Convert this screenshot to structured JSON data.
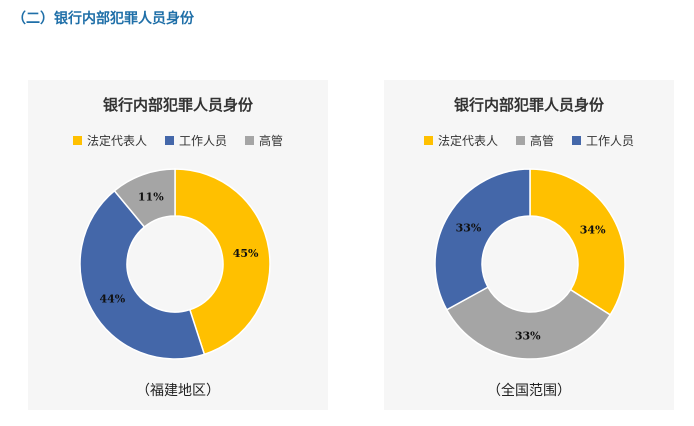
{
  "heading": "（二）银行内部犯罪人员身份",
  "colors": {
    "legal_rep": "#ffc000",
    "staff": "#4467a9",
    "exec": "#a5a5a5"
  },
  "chart_data": [
    {
      "type": "pie",
      "title": "银行内部犯罪人员身份",
      "caption": "（福建地区）",
      "legend": [
        "法定代表人",
        "工作人员",
        "高管"
      ],
      "slices": [
        {
          "name": "法定代表人",
          "value": 45,
          "label": "45%",
          "color": "#ffc000"
        },
        {
          "name": "工作人员",
          "value": 44,
          "label": "44%",
          "color": "#4467a9"
        },
        {
          "name": "高管",
          "value": 11,
          "label": "11%",
          "color": "#a5a5a5"
        }
      ]
    },
    {
      "type": "pie",
      "title": "银行内部犯罪人员身份",
      "caption": "（全国范围）",
      "legend": [
        "法定代表人",
        "高管",
        "工作人员"
      ],
      "slices": [
        {
          "name": "法定代表人",
          "value": 34,
          "label": "34%",
          "color": "#ffc000"
        },
        {
          "name": "高管",
          "value": 33,
          "label": "33%",
          "color": "#a5a5a5"
        },
        {
          "name": "工作人员",
          "value": 33,
          "label": "33%",
          "color": "#4467a9"
        }
      ]
    }
  ]
}
